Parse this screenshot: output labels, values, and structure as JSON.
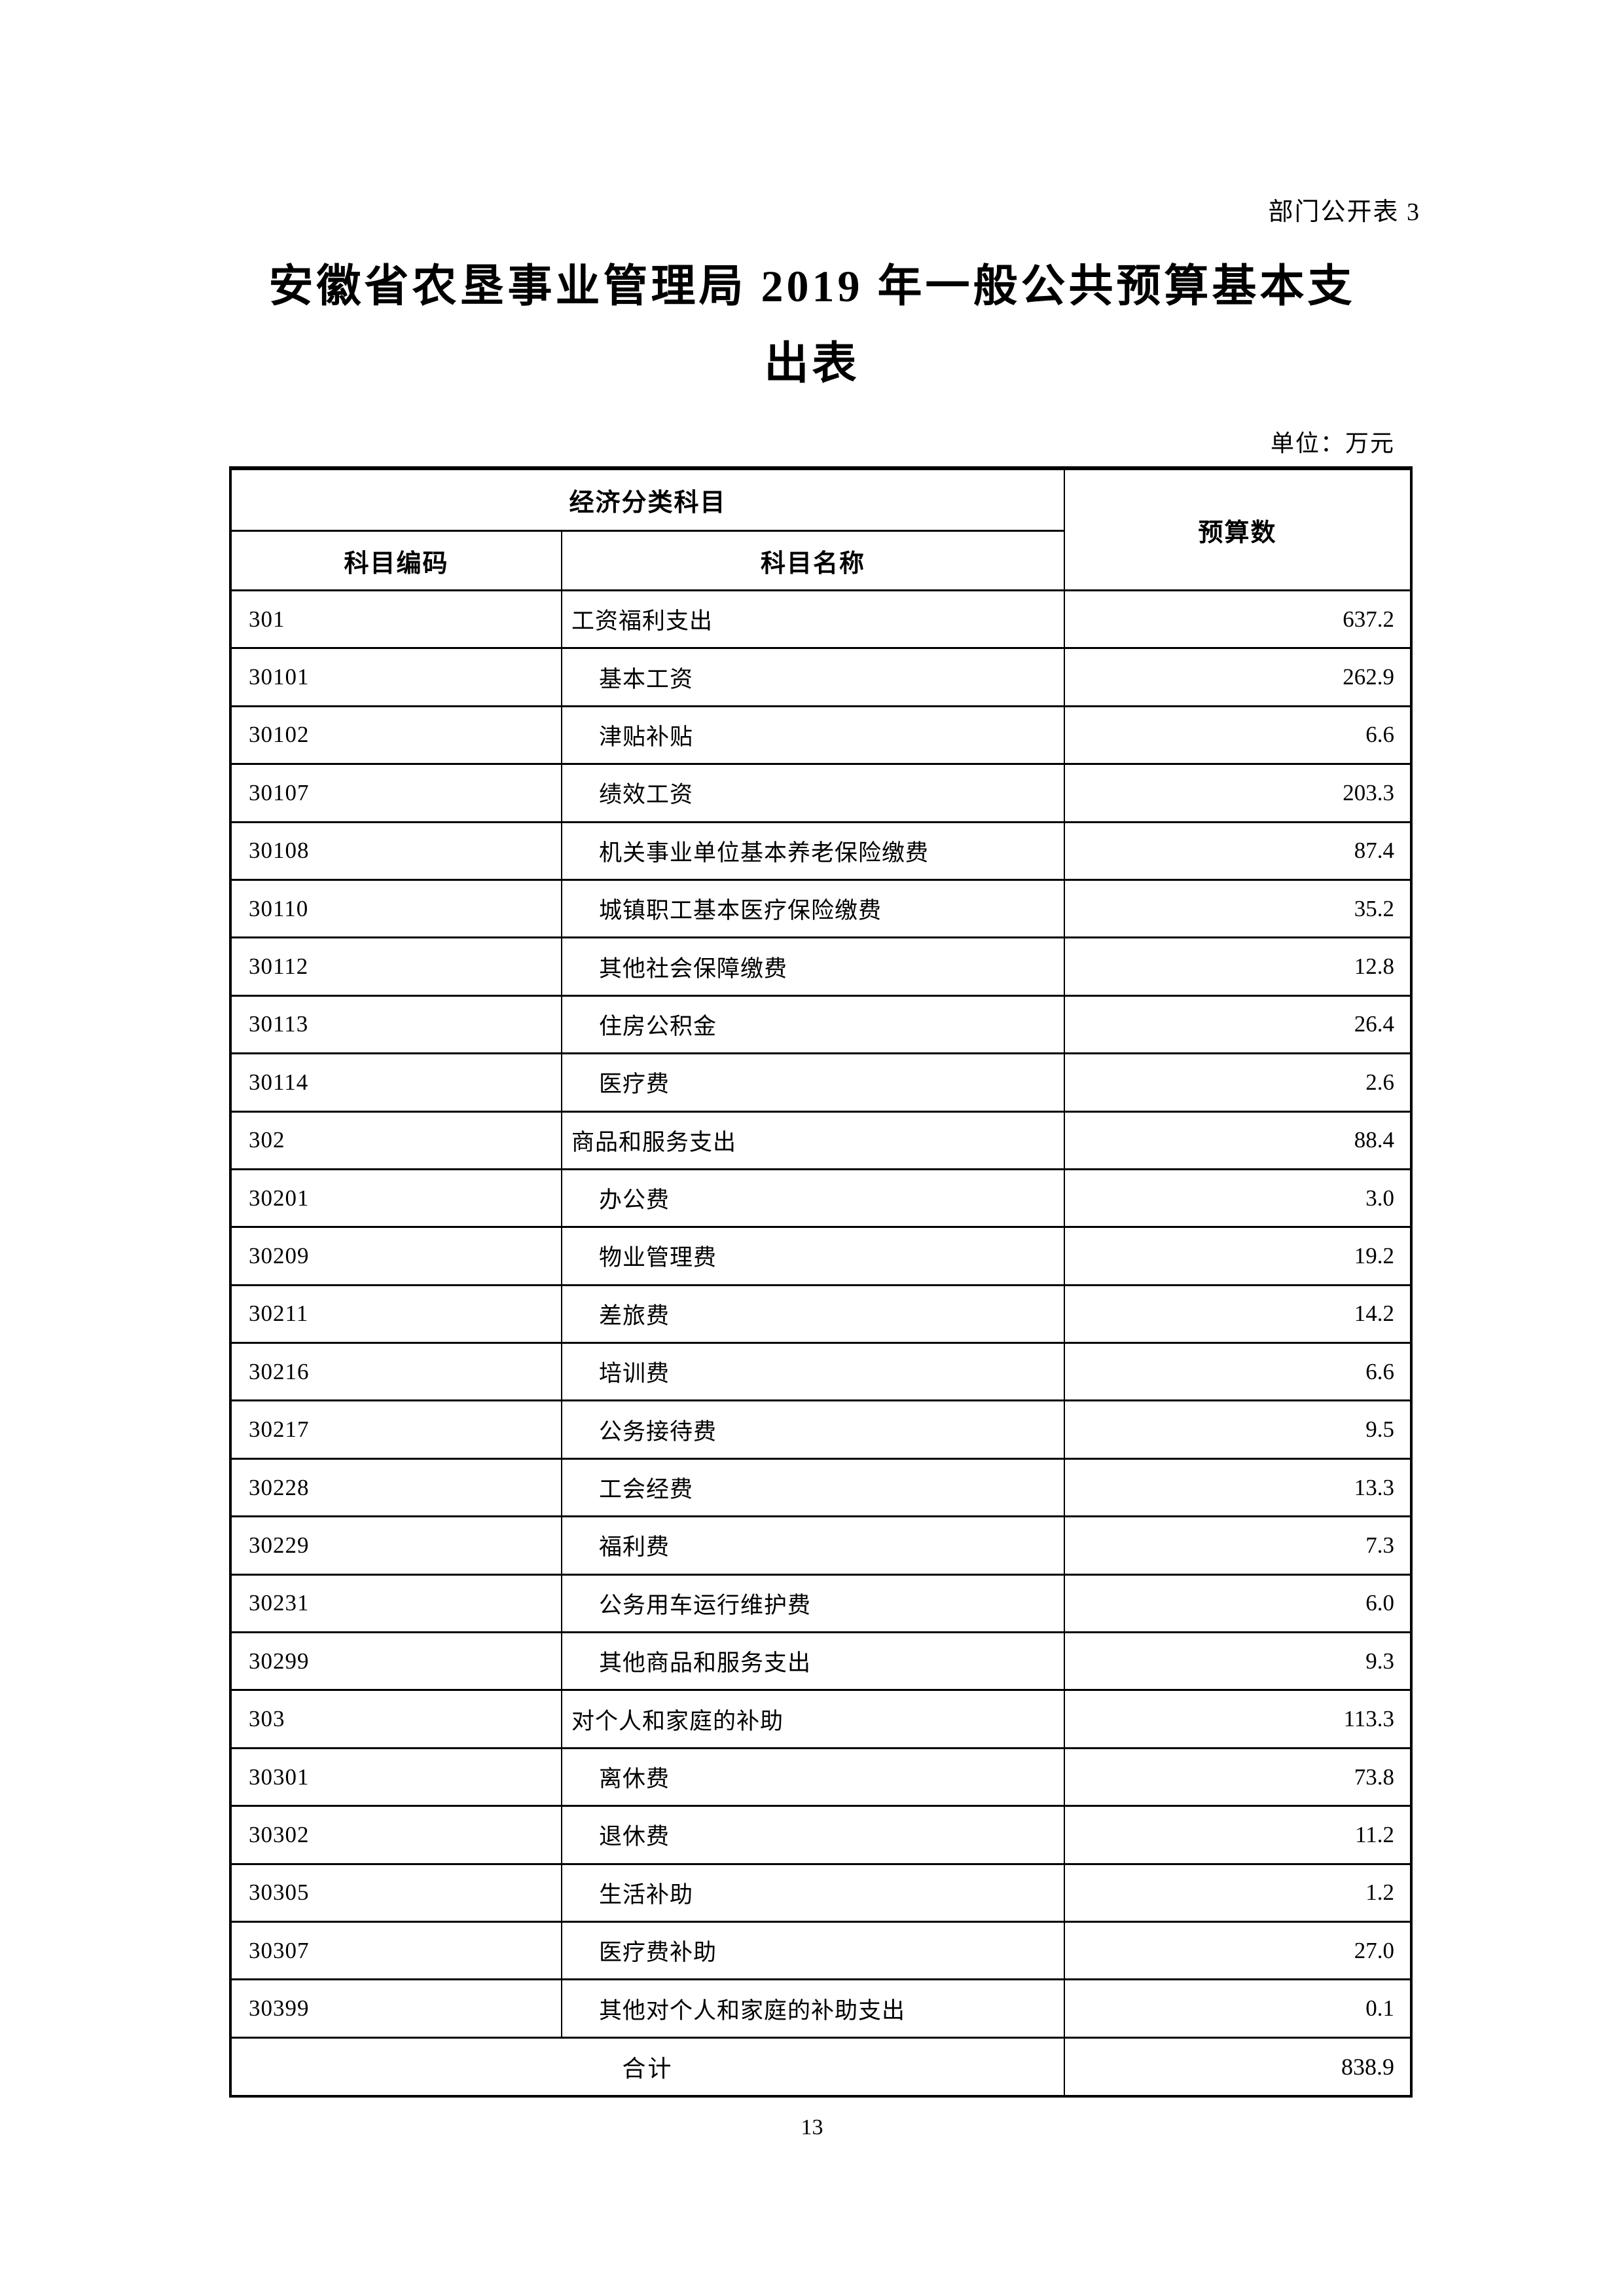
{
  "page": {
    "doc_label": "部门公开表 3",
    "title_line1": "安徽省农垦事业管理局 2019 年一般公共预算基本支",
    "title_line2": "出表",
    "unit_label": "单位：万元",
    "page_number": "13"
  },
  "table": {
    "header": {
      "group": "经济分类科目",
      "col_code": "科目编码",
      "col_name": "科目名称",
      "col_value": "预算数"
    },
    "rows": [
      {
        "code": "301",
        "name": "工资福利支出",
        "value": "637.2",
        "level": 0
      },
      {
        "code": "30101",
        "name": "基本工资",
        "value": "262.9",
        "level": 1
      },
      {
        "code": "30102",
        "name": "津贴补贴",
        "value": "6.6",
        "level": 1
      },
      {
        "code": "30107",
        "name": "绩效工资",
        "value": "203.3",
        "level": 1
      },
      {
        "code": "30108",
        "name": "机关事业单位基本养老保险缴费",
        "value": "87.4",
        "level": 1
      },
      {
        "code": "30110",
        "name": "城镇职工基本医疗保险缴费",
        "value": "35.2",
        "level": 1
      },
      {
        "code": "30112",
        "name": "其他社会保障缴费",
        "value": "12.8",
        "level": 1
      },
      {
        "code": "30113",
        "name": "住房公积金",
        "value": "26.4",
        "level": 1
      },
      {
        "code": "30114",
        "name": "医疗费",
        "value": "2.6",
        "level": 1
      },
      {
        "code": "302",
        "name": "商品和服务支出",
        "value": "88.4",
        "level": 0
      },
      {
        "code": "30201",
        "name": "办公费",
        "value": "3.0",
        "level": 1
      },
      {
        "code": "30209",
        "name": "物业管理费",
        "value": "19.2",
        "level": 1
      },
      {
        "code": "30211",
        "name": "差旅费",
        "value": "14.2",
        "level": 1
      },
      {
        "code": "30216",
        "name": "培训费",
        "value": "6.6",
        "level": 1
      },
      {
        "code": "30217",
        "name": "公务接待费",
        "value": "9.5",
        "level": 1
      },
      {
        "code": "30228",
        "name": "工会经费",
        "value": "13.3",
        "level": 1
      },
      {
        "code": "30229",
        "name": "福利费",
        "value": "7.3",
        "level": 1
      },
      {
        "code": "30231",
        "name": "公务用车运行维护费",
        "value": "6.0",
        "level": 1
      },
      {
        "code": "30299",
        "name": "其他商品和服务支出",
        "value": "9.3",
        "level": 1
      },
      {
        "code": "303",
        "name": "对个人和家庭的补助",
        "value": "113.3",
        "level": 0
      },
      {
        "code": "30301",
        "name": "离休费",
        "value": "73.8",
        "level": 1
      },
      {
        "code": "30302",
        "name": "退休费",
        "value": "11.2",
        "level": 1
      },
      {
        "code": "30305",
        "name": "生活补助",
        "value": "1.2",
        "level": 1
      },
      {
        "code": "30307",
        "name": "医疗费补助",
        "value": "27.0",
        "level": 1
      },
      {
        "code": "30399",
        "name": "其他对个人和家庭的补助支出",
        "value": "0.1",
        "level": 1
      }
    ],
    "total": {
      "label": "合计",
      "value": "838.9"
    }
  }
}
